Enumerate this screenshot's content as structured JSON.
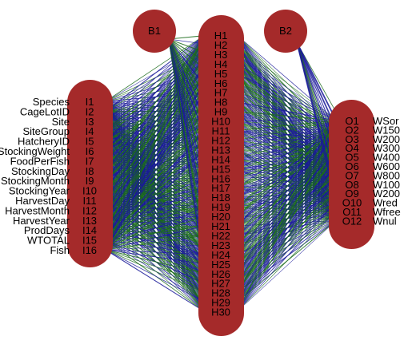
{
  "colors": {
    "node_fill": "#a52a2a",
    "positive_weight": "#1a6b1a",
    "negative_weight": "#1a1a99",
    "background": "#ffffff"
  },
  "bias_nodes": [
    "B1",
    "B2"
  ],
  "input_nodes": [
    "I1",
    "I2",
    "I3",
    "I4",
    "I5",
    "I6",
    "I7",
    "I8",
    "I9",
    "I10",
    "I11",
    "I12",
    "I13",
    "I14",
    "I15",
    "I16"
  ],
  "input_variables": [
    "Species",
    "CageLotID",
    "Site",
    "SiteGroup",
    "HatcheryID",
    "StockingWeight",
    "FoodPerFish",
    "StockingDay",
    "StockingMonth",
    "StockingYear",
    "HarvestDay",
    "HarvestMonth",
    "HarvestYear",
    "ProdDays",
    "WTOTAL",
    "Fish"
  ],
  "hidden_nodes": [
    "H1",
    "H2",
    "H3",
    "H4",
    "H5",
    "H6",
    "H7",
    "H8",
    "H9",
    "H10",
    "H11",
    "H12",
    "H13",
    "H14",
    "H15",
    "H16",
    "H17",
    "H18",
    "H19",
    "H20",
    "H21",
    "H22",
    "H23",
    "H24",
    "H25",
    "H26",
    "H27",
    "H28",
    "H29",
    "H30"
  ],
  "output_nodes": [
    "O1",
    "O2",
    "O3",
    "O4",
    "O5",
    "O6",
    "O7",
    "O8",
    "O9",
    "O10",
    "O11",
    "O12"
  ],
  "output_variables": [
    "WSor",
    "W150",
    "W200",
    "W300",
    "W400",
    "W600",
    "W800",
    "W100",
    "W200",
    "Wred",
    "Wfree",
    "Wnul"
  ]
}
